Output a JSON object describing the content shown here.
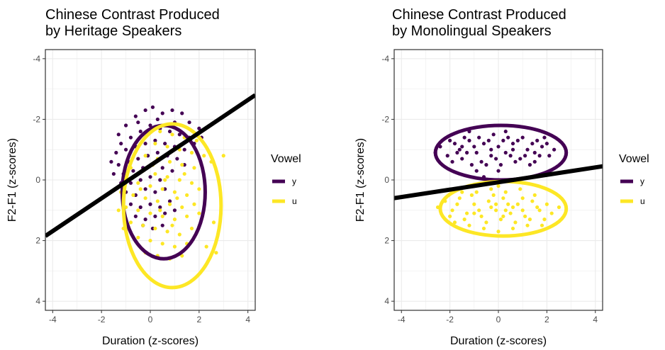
{
  "chart_data": [
    {
      "type": "scatter",
      "title_lines": [
        "Chinese Contrast Produced",
        "by Heritage Speakers"
      ],
      "xlabel": "Duration (z-scores)",
      "ylabel": "F2-F1 (z-scores)",
      "xlim": [
        -4.3,
        4.3
      ],
      "ylim": [
        -4.3,
        4.3
      ],
      "y_reversed": true,
      "xticks": [
        -4,
        -2,
        0,
        2,
        4
      ],
      "yticks": [
        -4,
        -2,
        0,
        2,
        4
      ],
      "grid": true,
      "legend": {
        "title": "Vowel",
        "position": "right",
        "entries": [
          "y",
          "u"
        ]
      },
      "decision_line": {
        "x1": -4.3,
        "y1": 1.85,
        "x2": 4.3,
        "y2": -2.8
      },
      "series": [
        {
          "name": "y",
          "color": "#440154",
          "ellipse": {
            "cx": 0.55,
            "cy": 0.4,
            "rx": 1.7,
            "ry": 2.2
          },
          "points": [
            [
              -1.3,
              -1.5
            ],
            [
              -1.0,
              -1.8
            ],
            [
              -0.6,
              -2.1
            ],
            [
              -0.2,
              -2.3
            ],
            [
              0.1,
              -2.4
            ],
            [
              0.5,
              -2.2
            ],
            [
              0.9,
              -2.3
            ],
            [
              1.3,
              -2.2
            ],
            [
              1.6,
              -1.9
            ],
            [
              2.0,
              -1.7
            ],
            [
              -1.2,
              -1.2
            ],
            [
              -0.8,
              -1.4
            ],
            [
              -0.4,
              -1.6
            ],
            [
              0.0,
              -1.8
            ],
            [
              0.4,
              -1.7
            ],
            [
              0.8,
              -1.6
            ],
            [
              1.2,
              -1.5
            ],
            [
              1.6,
              -1.4
            ],
            [
              -1.4,
              -0.9
            ],
            [
              -1.0,
              -1.0
            ],
            [
              -0.6,
              -1.1
            ],
            [
              -0.2,
              -1.2
            ],
            [
              0.2,
              -1.3
            ],
            [
              0.6,
              -1.2
            ],
            [
              1.0,
              -1.1
            ],
            [
              1.4,
              -1.0
            ],
            [
              -1.3,
              -0.5
            ],
            [
              -0.9,
              -0.6
            ],
            [
              -0.5,
              -0.7
            ],
            [
              -0.1,
              -0.8
            ],
            [
              0.3,
              -0.9
            ],
            [
              0.7,
              -0.8
            ],
            [
              1.1,
              -0.7
            ],
            [
              -1.5,
              -0.2
            ],
            [
              -1.1,
              -0.2
            ],
            [
              -0.7,
              -0.3
            ],
            [
              -0.3,
              -0.4
            ],
            [
              0.1,
              -0.5
            ],
            [
              0.5,
              -0.4
            ],
            [
              0.9,
              -0.3
            ],
            [
              -1.2,
              0.1
            ],
            [
              -0.8,
              0.1
            ],
            [
              -0.4,
              0.0
            ],
            [
              0.0,
              -0.1
            ],
            [
              0.4,
              0.0
            ],
            [
              -1.0,
              0.4
            ],
            [
              -0.6,
              0.5
            ],
            [
              -0.2,
              0.3
            ],
            [
              0.2,
              0.4
            ],
            [
              0.6,
              0.3
            ],
            [
              -0.8,
              0.8
            ],
            [
              -0.4,
              0.9
            ],
            [
              0.0,
              0.8
            ],
            [
              0.4,
              0.9
            ],
            [
              0.8,
              0.7
            ],
            [
              -0.6,
              1.2
            ],
            [
              -0.2,
              1.3
            ],
            [
              0.2,
              1.2
            ],
            [
              0.6,
              1.1
            ],
            [
              1.0,
              1.0
            ],
            [
              -0.3,
              1.5
            ],
            [
              0.1,
              1.6
            ],
            [
              0.5,
              1.5
            ],
            [
              -0.5,
              -1.9
            ],
            [
              0.3,
              -2.0
            ],
            [
              1.0,
              -1.9
            ],
            [
              1.8,
              -1.2
            ],
            [
              2.1,
              -1.4
            ],
            [
              -1.6,
              -0.6
            ],
            [
              1.4,
              -0.5
            ]
          ]
        },
        {
          "name": "u",
          "color": "#FDE725",
          "ellipse": {
            "cx": 0.9,
            "cy": 0.85,
            "rx": 2.0,
            "ry": 2.7
          },
          "points": [
            [
              0.4,
              -1.6
            ],
            [
              0.9,
              -1.5
            ],
            [
              1.4,
              -1.4
            ],
            [
              1.9,
              -1.3
            ],
            [
              0.2,
              -1.2
            ],
            [
              0.7,
              -1.1
            ],
            [
              1.2,
              -1.0
            ],
            [
              1.7,
              -0.9
            ],
            [
              2.2,
              -0.8
            ],
            [
              -0.2,
              -0.8
            ],
            [
              0.3,
              -0.7
            ],
            [
              0.8,
              -0.6
            ],
            [
              1.3,
              -0.5
            ],
            [
              1.8,
              -0.4
            ],
            [
              2.5,
              -0.6
            ],
            [
              3.0,
              -0.8
            ],
            [
              -0.8,
              -0.4
            ],
            [
              -0.3,
              -0.3
            ],
            [
              0.2,
              -0.2
            ],
            [
              0.7,
              -0.1
            ],
            [
              1.2,
              0.0
            ],
            [
              1.7,
              0.1
            ],
            [
              -1.0,
              0.0
            ],
            [
              -0.5,
              0.1
            ],
            [
              0.0,
              0.2
            ],
            [
              0.5,
              0.3
            ],
            [
              1.0,
              0.4
            ],
            [
              1.5,
              0.5
            ],
            [
              2.0,
              0.3
            ],
            [
              -1.2,
              0.4
            ],
            [
              -0.7,
              0.5
            ],
            [
              -0.2,
              0.6
            ],
            [
              0.3,
              0.7
            ],
            [
              0.8,
              0.8
            ],
            [
              1.3,
              0.9
            ],
            [
              1.8,
              0.8
            ],
            [
              -1.0,
              0.9
            ],
            [
              -0.5,
              1.0
            ],
            [
              0.0,
              1.1
            ],
            [
              0.5,
              1.2
            ],
            [
              1.0,
              1.3
            ],
            [
              1.5,
              1.2
            ],
            [
              2.0,
              1.1
            ],
            [
              -0.8,
              1.4
            ],
            [
              -0.3,
              1.5
            ],
            [
              0.2,
              1.6
            ],
            [
              0.7,
              1.7
            ],
            [
              1.2,
              1.8
            ],
            [
              1.7,
              1.6
            ],
            [
              -0.5,
              1.9
            ],
            [
              0.0,
              2.0
            ],
            [
              0.5,
              2.1
            ],
            [
              1.0,
              2.2
            ],
            [
              1.5,
              2.1
            ],
            [
              -0.2,
              2.4
            ],
            [
              0.3,
              2.5
            ],
            [
              0.8,
              2.6
            ],
            [
              1.3,
              2.5
            ],
            [
              2.3,
              2.2
            ],
            [
              2.7,
              2.4
            ],
            [
              -1.1,
              1.6
            ],
            [
              -1.3,
              1.0
            ],
            [
              2.6,
              1.4
            ],
            [
              0.1,
              -0.5
            ],
            [
              0.6,
              0.0
            ],
            [
              1.1,
              0.6
            ],
            [
              -0.4,
              0.3
            ],
            [
              0.9,
              1.5
            ],
            [
              1.4,
              -0.2
            ],
            [
              0.4,
              1.0
            ]
          ]
        }
      ]
    },
    {
      "type": "scatter",
      "title_lines": [
        "Chinese Contrast Produced",
        "by Monolingual Speakers"
      ],
      "xlabel": "Duration (z-scores)",
      "ylabel": "F2-F1 (z-scores)",
      "xlim": [
        -4.3,
        4.3
      ],
      "ylim": [
        -4.3,
        4.3
      ],
      "y_reversed": true,
      "xticks": [
        -4,
        -2,
        0,
        2,
        4
      ],
      "yticks": [
        -4,
        -2,
        0,
        2,
        4
      ],
      "grid": true,
      "legend": {
        "title": "Vowel",
        "position": "right",
        "entries": [
          "y",
          "u"
        ]
      },
      "decision_line": {
        "x1": -4.3,
        "y1": 0.6,
        "x2": 4.3,
        "y2": -0.45
      },
      "series": [
        {
          "name": "y",
          "color": "#440154",
          "ellipse": {
            "cx": 0.1,
            "cy": -0.9,
            "rx": 2.7,
            "ry": 0.9
          },
          "points": [
            [
              -2.4,
              -1.1
            ],
            [
              -2.1,
              -0.8
            ],
            [
              -1.8,
              -1.2
            ],
            [
              -1.5,
              -0.7
            ],
            [
              -1.2,
              -1.3
            ],
            [
              -0.9,
              -0.9
            ],
            [
              -0.6,
              -1.2
            ],
            [
              -0.3,
              -0.8
            ],
            [
              0.0,
              -1.1
            ],
            [
              0.3,
              -0.9
            ],
            [
              0.6,
              -1.2
            ],
            [
              0.9,
              -0.7
            ],
            [
              1.2,
              -1.0
            ],
            [
              1.5,
              -0.6
            ],
            [
              1.8,
              -1.1
            ],
            [
              2.1,
              -0.8
            ],
            [
              -2.0,
              -1.3
            ],
            [
              -1.6,
              -1.0
            ],
            [
              -1.3,
              -0.9
            ],
            [
              -1.0,
              -1.1
            ],
            [
              -0.7,
              -0.6
            ],
            [
              -0.4,
              -1.3
            ],
            [
              -0.1,
              -0.7
            ],
            [
              0.2,
              -1.3
            ],
            [
              0.5,
              -0.8
            ],
            [
              0.8,
              -1.3
            ],
            [
              1.1,
              -0.8
            ],
            [
              1.4,
              -1.2
            ],
            [
              1.7,
              -0.8
            ],
            [
              2.0,
              -1.2
            ],
            [
              -1.9,
              -0.6
            ],
            [
              -1.4,
              -1.4
            ],
            [
              -0.8,
              -1.4
            ],
            [
              -0.2,
              -1.5
            ],
            [
              0.4,
              -1.4
            ],
            [
              1.0,
              -1.4
            ],
            [
              1.6,
              -1.3
            ],
            [
              -1.1,
              -0.5
            ],
            [
              -0.5,
              -0.5
            ],
            [
              0.1,
              -0.5
            ],
            [
              0.7,
              -0.6
            ],
            [
              1.3,
              -0.5
            ],
            [
              -1.7,
              -0.9
            ],
            [
              -0.9,
              -0.3
            ],
            [
              0.0,
              -0.3
            ],
            [
              -0.6,
              -0.1
            ],
            [
              2.3,
              -1.0
            ],
            [
              -2.6,
              -0.9
            ],
            [
              0.3,
              -1.6
            ],
            [
              -1.2,
              -1.6
            ],
            [
              1.9,
              -1.4
            ],
            [
              -0.3,
              -1.0
            ],
            [
              0.6,
              -1.0
            ],
            [
              1.5,
              -0.9
            ],
            [
              -1.5,
              -1.1
            ]
          ]
        },
        {
          "name": "u",
          "color": "#FDE725",
          "ellipse": {
            "cx": 0.2,
            "cy": 0.95,
            "rx": 2.6,
            "ry": 0.9
          },
          "points": [
            [
              -2.2,
              0.7
            ],
            [
              -1.9,
              1.0
            ],
            [
              -1.6,
              0.6
            ],
            [
              -1.3,
              1.1
            ],
            [
              -1.0,
              0.8
            ],
            [
              -0.7,
              1.2
            ],
            [
              -0.4,
              0.7
            ],
            [
              -0.1,
              1.0
            ],
            [
              0.2,
              0.6
            ],
            [
              0.5,
              1.1
            ],
            [
              0.8,
              0.8
            ],
            [
              1.1,
              1.2
            ],
            [
              1.4,
              0.7
            ],
            [
              1.7,
              1.0
            ],
            [
              2.0,
              0.8
            ],
            [
              2.2,
              1.1
            ],
            [
              -2.0,
              1.2
            ],
            [
              -1.7,
              0.8
            ],
            [
              -1.4,
              1.3
            ],
            [
              -1.1,
              0.5
            ],
            [
              -0.8,
              1.0
            ],
            [
              -0.5,
              1.4
            ],
            [
              -0.2,
              0.5
            ],
            [
              0.1,
              1.3
            ],
            [
              0.4,
              0.8
            ],
            [
              0.7,
              1.4
            ],
            [
              1.0,
              0.6
            ],
            [
              1.3,
              1.3
            ],
            [
              1.6,
              0.9
            ],
            [
              1.9,
              1.3
            ],
            [
              -1.8,
              1.4
            ],
            [
              -1.2,
              1.5
            ],
            [
              -0.6,
              1.6
            ],
            [
              0.0,
              1.7
            ],
            [
              0.6,
              1.6
            ],
            [
              1.2,
              1.5
            ],
            [
              -1.5,
              0.4
            ],
            [
              -0.9,
              0.4
            ],
            [
              -0.3,
              0.3
            ],
            [
              0.3,
              0.4
            ],
            [
              0.9,
              0.3
            ],
            [
              1.5,
              0.5
            ],
            [
              -0.6,
              0.1
            ],
            [
              0.0,
              0.2
            ],
            [
              0.6,
              0.9
            ],
            [
              -0.3,
              0.9
            ],
            [
              0.3,
              1.0
            ],
            [
              -2.5,
              0.9
            ],
            [
              2.5,
              0.9
            ],
            [
              1.8,
              1.5
            ],
            [
              -1.0,
              1.1
            ],
            [
              1.0,
              1.0
            ],
            [
              0.2,
              1.2
            ],
            [
              -0.1,
              0.8
            ]
          ]
        }
      ]
    }
  ]
}
